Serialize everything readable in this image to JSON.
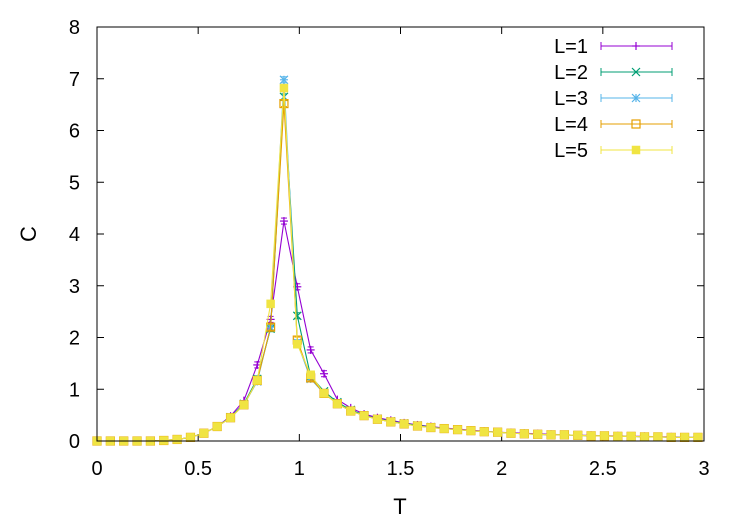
{
  "chart_data": {
    "type": "line",
    "xlabel": "T",
    "ylabel": "C",
    "xlim": [
      0,
      3
    ],
    "ylim": [
      0,
      8
    ],
    "xticks": [
      "0",
      "0.5",
      "1",
      "1.5",
      "2",
      "2.5",
      "3"
    ],
    "yticks": [
      "0",
      "1",
      "2",
      "3",
      "4",
      "5",
      "6",
      "7",
      "8"
    ],
    "grid": false,
    "legend_position": "top-right",
    "x": [
      0.0,
      0.066,
      0.132,
      0.198,
      0.264,
      0.33,
      0.396,
      0.462,
      0.528,
      0.594,
      0.66,
      0.726,
      0.792,
      0.858,
      0.924,
      0.99,
      1.056,
      1.122,
      1.188,
      1.254,
      1.32,
      1.386,
      1.452,
      1.518,
      1.584,
      1.65,
      1.716,
      1.782,
      1.848,
      1.914,
      1.98,
      2.046,
      2.112,
      2.178,
      2.244,
      2.31,
      2.376,
      2.442,
      2.508,
      2.574,
      2.64,
      2.706,
      2.772,
      2.838,
      2.904,
      2.97
    ],
    "series": [
      {
        "name": "L=1",
        "color": "#9400d3",
        "marker": "plus",
        "values": [
          0.0,
          0.0,
          0.0,
          0.0,
          0.0,
          0.01,
          0.03,
          0.07,
          0.15,
          0.28,
          0.48,
          0.78,
          1.47,
          2.35,
          4.25,
          2.98,
          1.76,
          1.3,
          0.8,
          0.64,
          0.52,
          0.45,
          0.4,
          0.35,
          0.31,
          0.28,
          0.25,
          0.23,
          0.21,
          0.19,
          0.17,
          0.16,
          0.15,
          0.14,
          0.13,
          0.12,
          0.11,
          0.11,
          0.1,
          0.1,
          0.09,
          0.09,
          0.08,
          0.08,
          0.07,
          0.07
        ]
      },
      {
        "name": "L=2",
        "color": "#009e73",
        "marker": "cross",
        "values": [
          0.0,
          0.0,
          0.0,
          0.0,
          0.0,
          0.01,
          0.03,
          0.07,
          0.15,
          0.28,
          0.46,
          0.72,
          1.2,
          2.17,
          6.65,
          2.42,
          1.25,
          0.96,
          0.75,
          0.6,
          0.5,
          0.43,
          0.38,
          0.34,
          0.3,
          0.27,
          0.24,
          0.22,
          0.2,
          0.18,
          0.17,
          0.15,
          0.14,
          0.13,
          0.12,
          0.12,
          0.11,
          0.1,
          0.1,
          0.09,
          0.09,
          0.08,
          0.08,
          0.07,
          0.07,
          0.07
        ]
      },
      {
        "name": "L=3",
        "color": "#56b4e9",
        "marker": "star",
        "values": [
          0.0,
          0.0,
          0.0,
          0.0,
          0.0,
          0.01,
          0.03,
          0.07,
          0.15,
          0.28,
          0.45,
          0.7,
          1.15,
          2.2,
          6.98,
          1.9,
          1.2,
          0.92,
          0.72,
          0.58,
          0.49,
          0.42,
          0.37,
          0.33,
          0.29,
          0.26,
          0.24,
          0.22,
          0.2,
          0.18,
          0.17,
          0.15,
          0.14,
          0.13,
          0.12,
          0.12,
          0.11,
          0.1,
          0.1,
          0.09,
          0.09,
          0.08,
          0.08,
          0.07,
          0.07,
          0.07
        ]
      },
      {
        "name": "L=4",
        "color": "#e69f00",
        "marker": "open-square",
        "values": [
          0.0,
          0.0,
          0.0,
          0.0,
          0.0,
          0.01,
          0.03,
          0.07,
          0.15,
          0.28,
          0.45,
          0.7,
          1.17,
          2.2,
          6.52,
          1.95,
          1.22,
          0.92,
          0.72,
          0.58,
          0.49,
          0.42,
          0.37,
          0.33,
          0.29,
          0.26,
          0.24,
          0.22,
          0.2,
          0.18,
          0.17,
          0.15,
          0.14,
          0.13,
          0.12,
          0.12,
          0.11,
          0.1,
          0.1,
          0.09,
          0.09,
          0.08,
          0.08,
          0.07,
          0.07,
          0.07
        ]
      },
      {
        "name": "L=5",
        "color": "#f0e442",
        "marker": "filled-square",
        "values": [
          0.0,
          0.0,
          0.0,
          0.0,
          0.0,
          0.01,
          0.03,
          0.07,
          0.15,
          0.28,
          0.45,
          0.7,
          1.17,
          2.65,
          6.82,
          1.87,
          1.28,
          0.92,
          0.72,
          0.58,
          0.49,
          0.42,
          0.37,
          0.33,
          0.29,
          0.26,
          0.24,
          0.22,
          0.2,
          0.18,
          0.17,
          0.15,
          0.14,
          0.13,
          0.12,
          0.12,
          0.11,
          0.1,
          0.1,
          0.09,
          0.09,
          0.08,
          0.08,
          0.07,
          0.07,
          0.07
        ]
      }
    ]
  }
}
